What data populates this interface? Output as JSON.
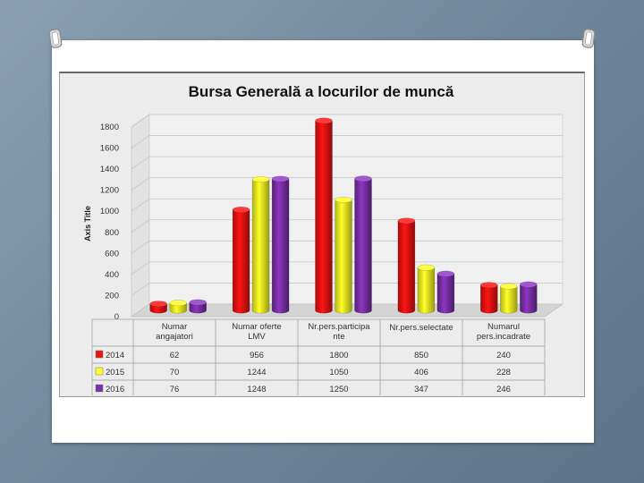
{
  "chart_data": {
    "type": "bar",
    "title": "Bursa Generală a locurilor de muncă",
    "xlabel": "",
    "ylabel": "Axis Title",
    "ylim": [
      0,
      1800
    ],
    "yticks": [
      0,
      200,
      400,
      600,
      800,
      1000,
      1200,
      1400,
      1600,
      1800
    ],
    "categories": [
      [
        "Numar",
        "angajatori"
      ],
      [
        "Numar oferte",
        "LMV"
      ],
      [
        "Nr.pers.participa",
        "nte"
      ],
      [
        "Nr.pers.selectate"
      ],
      [
        "Numarul",
        "pers.incadrate"
      ]
    ],
    "series": [
      {
        "name": "2014",
        "color": "#ee1111",
        "values": [
          62,
          956,
          1800,
          850,
          240
        ]
      },
      {
        "name": "2015",
        "color": "#ffff22",
        "values": [
          70,
          1244,
          1050,
          406,
          228
        ]
      },
      {
        "name": "2016",
        "color": "#7a2fa8",
        "values": [
          76,
          1248,
          1250,
          347,
          246
        ]
      }
    ],
    "legend_position": "data-table",
    "grid": true,
    "style": "3d-cylinder"
  }
}
